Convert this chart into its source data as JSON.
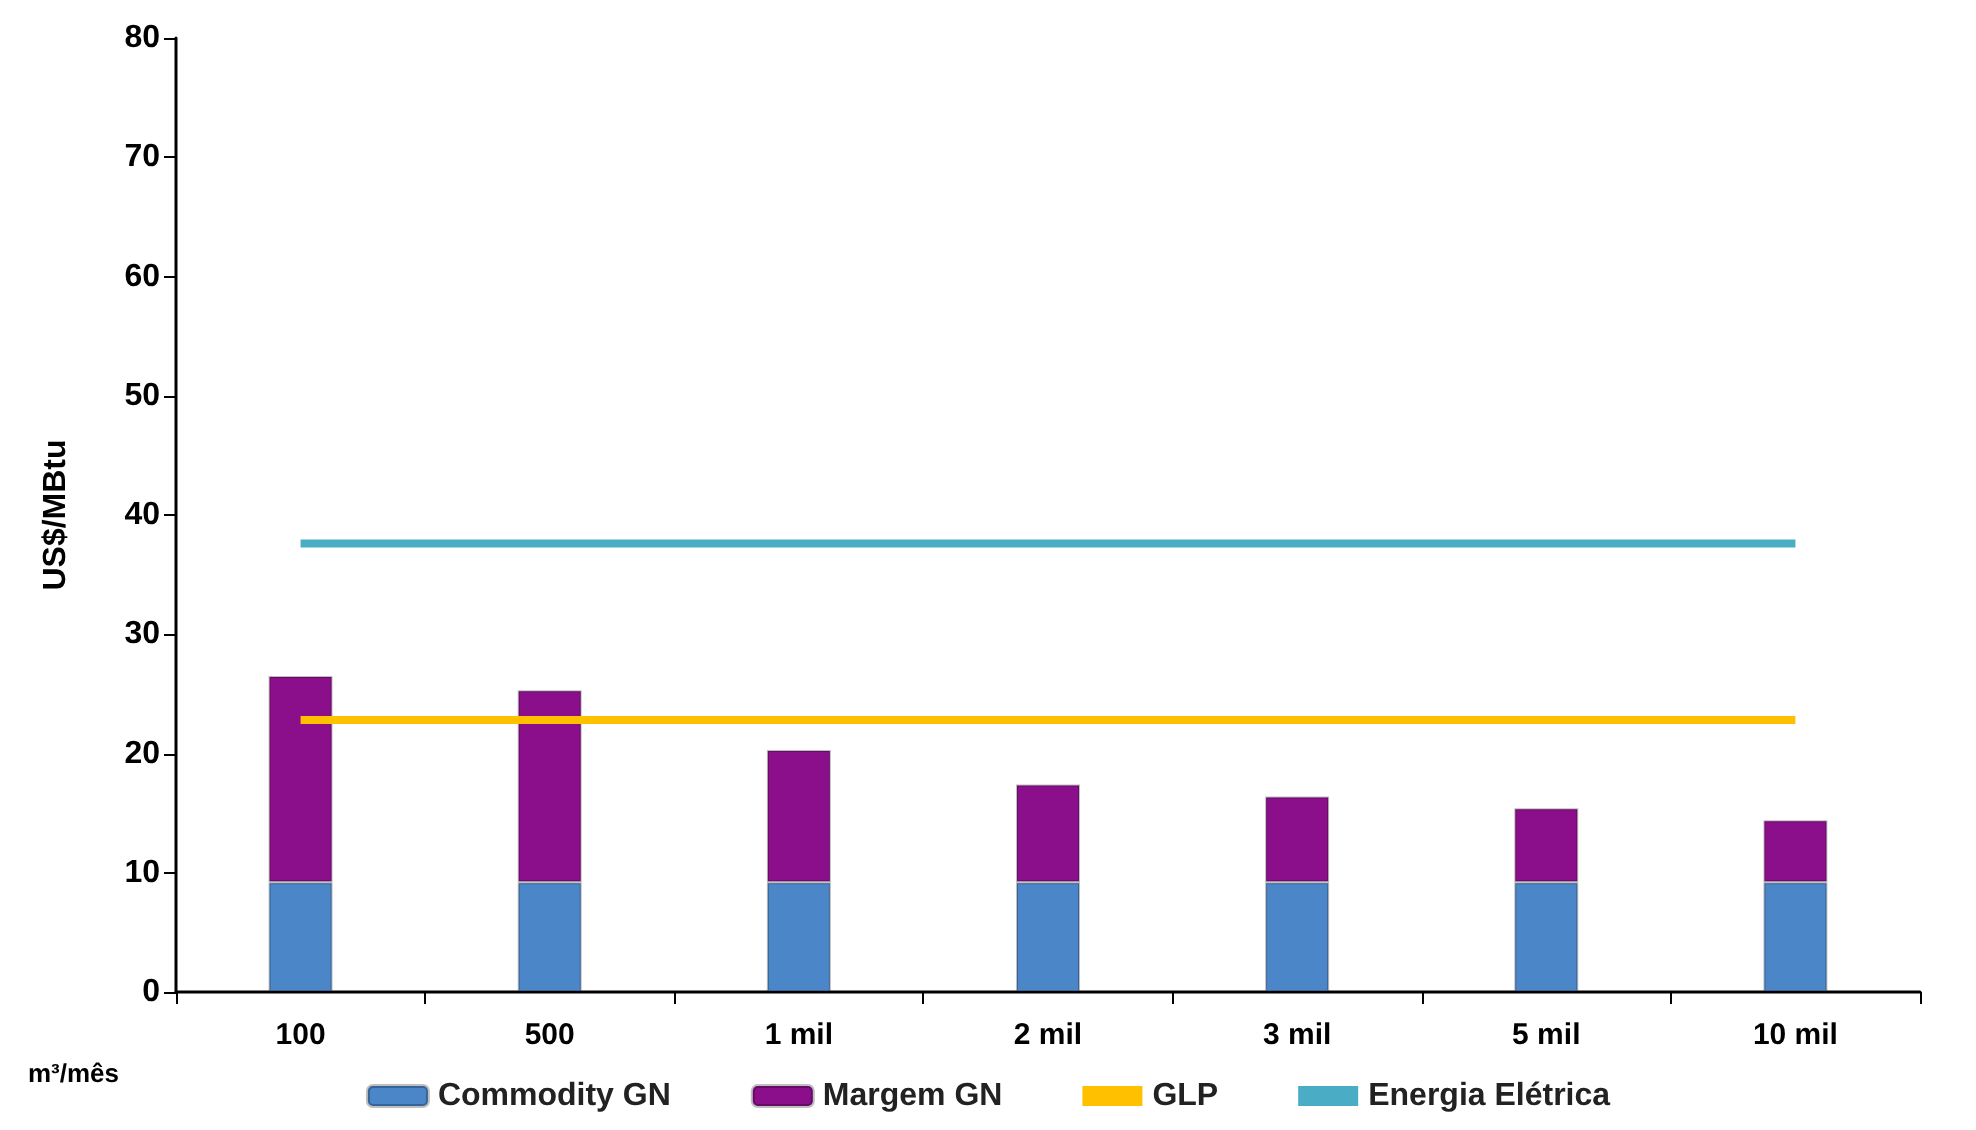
{
  "chart_data": {
    "type": "bar",
    "stacked": true,
    "ylabel": "US$/MBtu",
    "xlabel": "m³/mês",
    "categories": [
      "100",
      "500",
      "1 mil",
      "2 mil",
      "3 mil",
      "5 mil",
      "10 mil"
    ],
    "series": [
      {
        "name": "Commodity GN",
        "color": "#4a86c8",
        "values": [
          9.2,
          9.2,
          9.2,
          9.2,
          9.2,
          9.2,
          9.2
        ]
      },
      {
        "name": "Margem GN",
        "color": "#8b0f8b",
        "values": [
          17.3,
          16.1,
          11.1,
          8.2,
          7.2,
          6.2,
          5.2
        ]
      },
      {
        "name": "GLP",
        "type": "line",
        "color": "#ffc000",
        "values": [
          22.8,
          22.8,
          22.8,
          22.8,
          22.8,
          22.8,
          22.8
        ]
      },
      {
        "name": "Energia Elétrica",
        "type": "line",
        "color": "#4bacc6",
        "values": [
          37.6,
          37.6,
          37.6,
          37.6,
          37.6,
          37.6,
          37.6
        ]
      }
    ],
    "ylim": [
      0,
      80
    ],
    "yticks": [
      0,
      10,
      20,
      30,
      40,
      50,
      60,
      70,
      80
    ],
    "grid": false,
    "legend": "bottom",
    "marker": "none"
  }
}
